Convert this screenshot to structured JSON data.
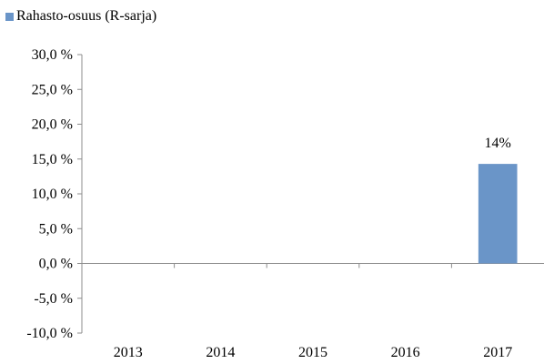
{
  "chart_data": {
    "type": "bar",
    "title": "",
    "xlabel": "",
    "ylabel": "",
    "categories": [
      "2013",
      "2014",
      "2015",
      "2016",
      "2017"
    ],
    "series": [
      {
        "name": "Rahasto-osuus (R-sarja)",
        "values": [
          null,
          null,
          null,
          null,
          14.3
        ],
        "data_labels": [
          "",
          "",
          "",
          "",
          "14%"
        ]
      }
    ],
    "ylim": [
      -10,
      30
    ],
    "yticks": [
      30,
      25,
      20,
      15,
      10,
      5,
      0,
      -5,
      -10
    ],
    "ytick_labels": [
      "30,0 %",
      "25,0 %",
      "20,0 %",
      "15,0 %",
      "10,0 %",
      "5,0 %",
      "0,0 %",
      "-5,0 %",
      "-10,0 %"
    ],
    "legend_position": "top-left",
    "grid": false,
    "colors": {
      "bar": "#6a95c8",
      "axis": "#8c8c8c"
    }
  }
}
